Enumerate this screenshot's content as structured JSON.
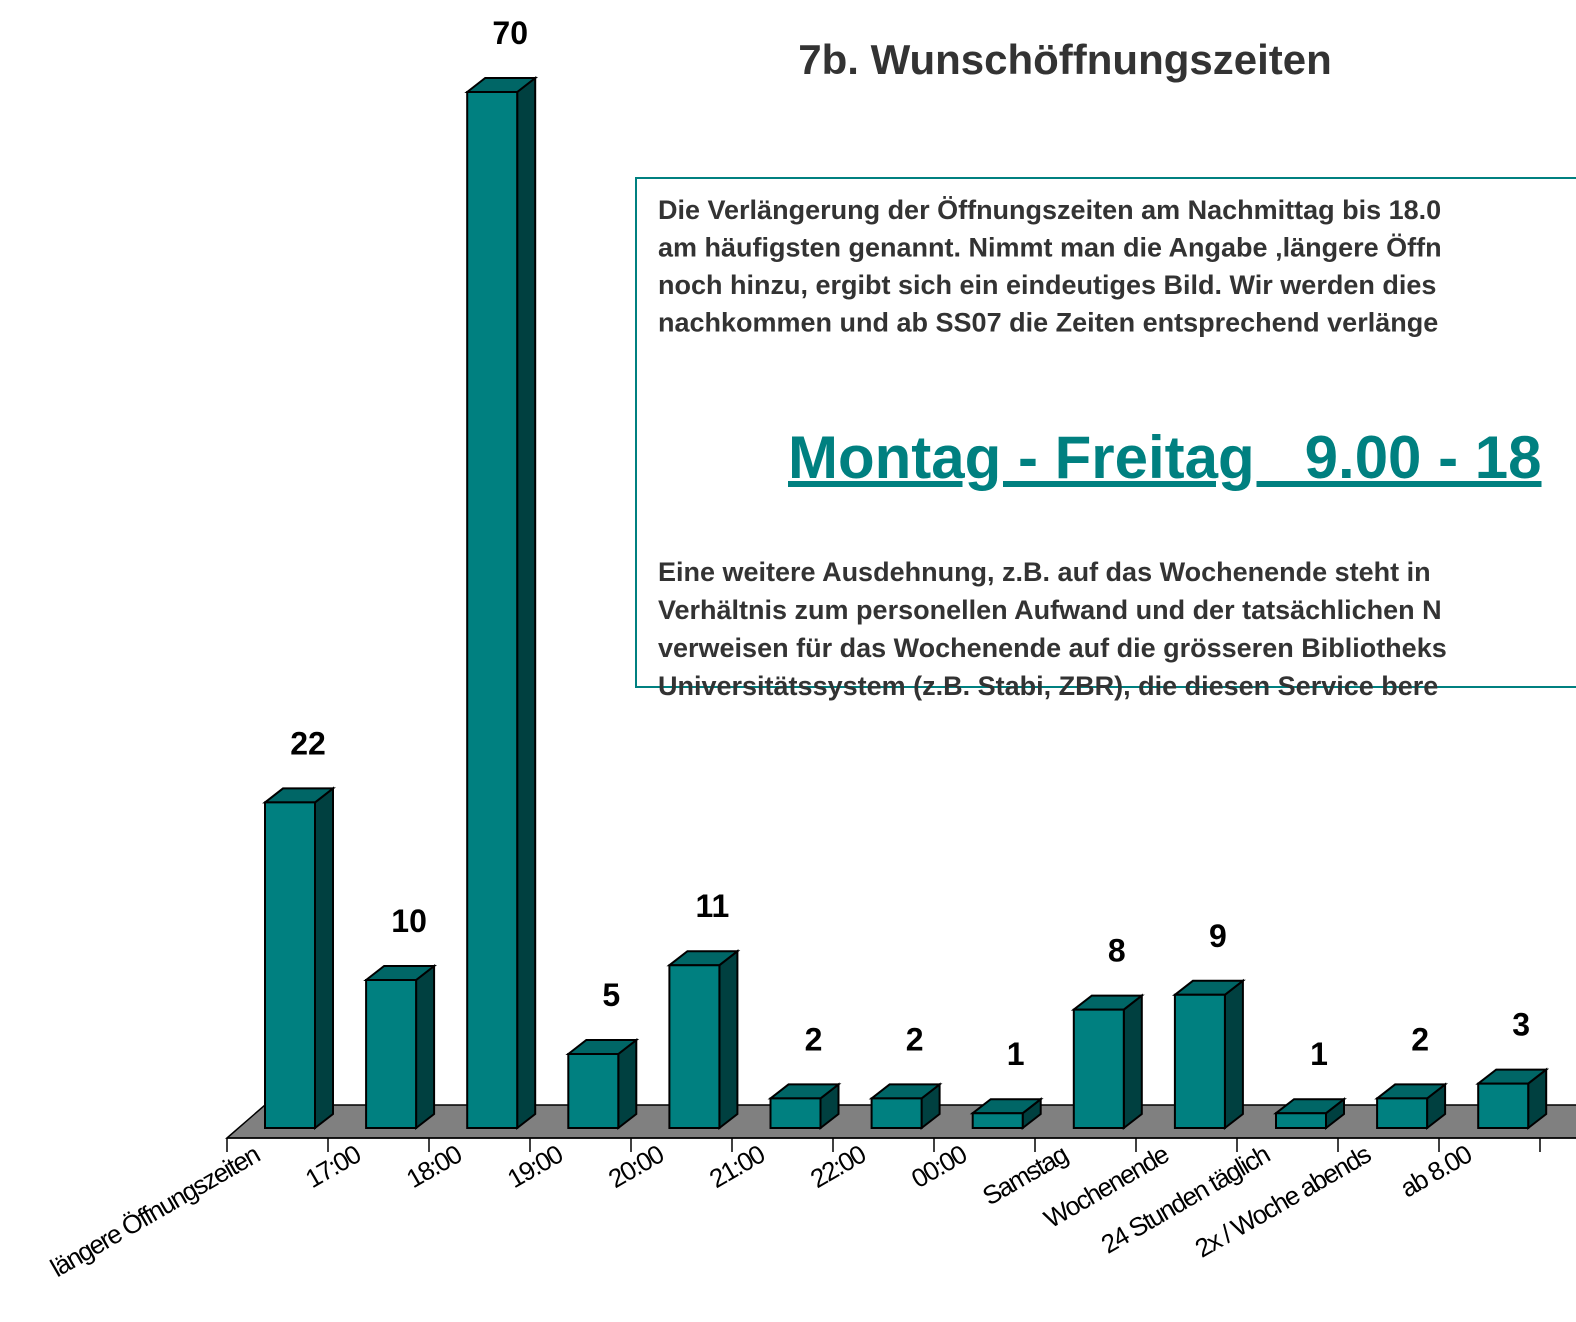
{
  "chart_data": {
    "type": "bar3d",
    "title": "7b. Wunschöffnungszeiten",
    "categories": [
      "längere Öffnungszeiten",
      "17:00",
      "18:00",
      "19:00",
      "20:00",
      "21:00",
      "22:00",
      "00:00",
      "Samstag",
      "Wochenende",
      "24 Stunden täglich",
      "2x / Woche abends",
      "ab 8.00"
    ],
    "values": [
      22,
      10,
      70,
      5,
      11,
      2,
      2,
      1,
      8,
      9,
      1,
      2,
      3
    ],
    "color": "#008080"
  },
  "text_box": {
    "paragraph1": [
      "Die Verlängerung der Öffnungszeiten am Nachmittag bis 18.0",
      "am häufigsten genannt. Nimmt man die Angabe ‚längere Öffn",
      "noch hinzu, ergibt sich ein eindeutiges Bild. Wir werden dies",
      "nachkommen und ab SS07 die Zeiten entsprechend verlänge"
    ],
    "highlight": "Montag - Freitag   9.00 - 18",
    "paragraph2": [
      "Eine weitere Ausdehnung, z.B. auf das Wochenende steht in",
      "Verhältnis zum personellen Aufwand und der tatsächlichen N",
      "verweisen für das Wochenende auf die grösseren Bibliotheks",
      "Universitätssystem (z.B. Stabi, ZBR), die diesen Service bere"
    ]
  }
}
